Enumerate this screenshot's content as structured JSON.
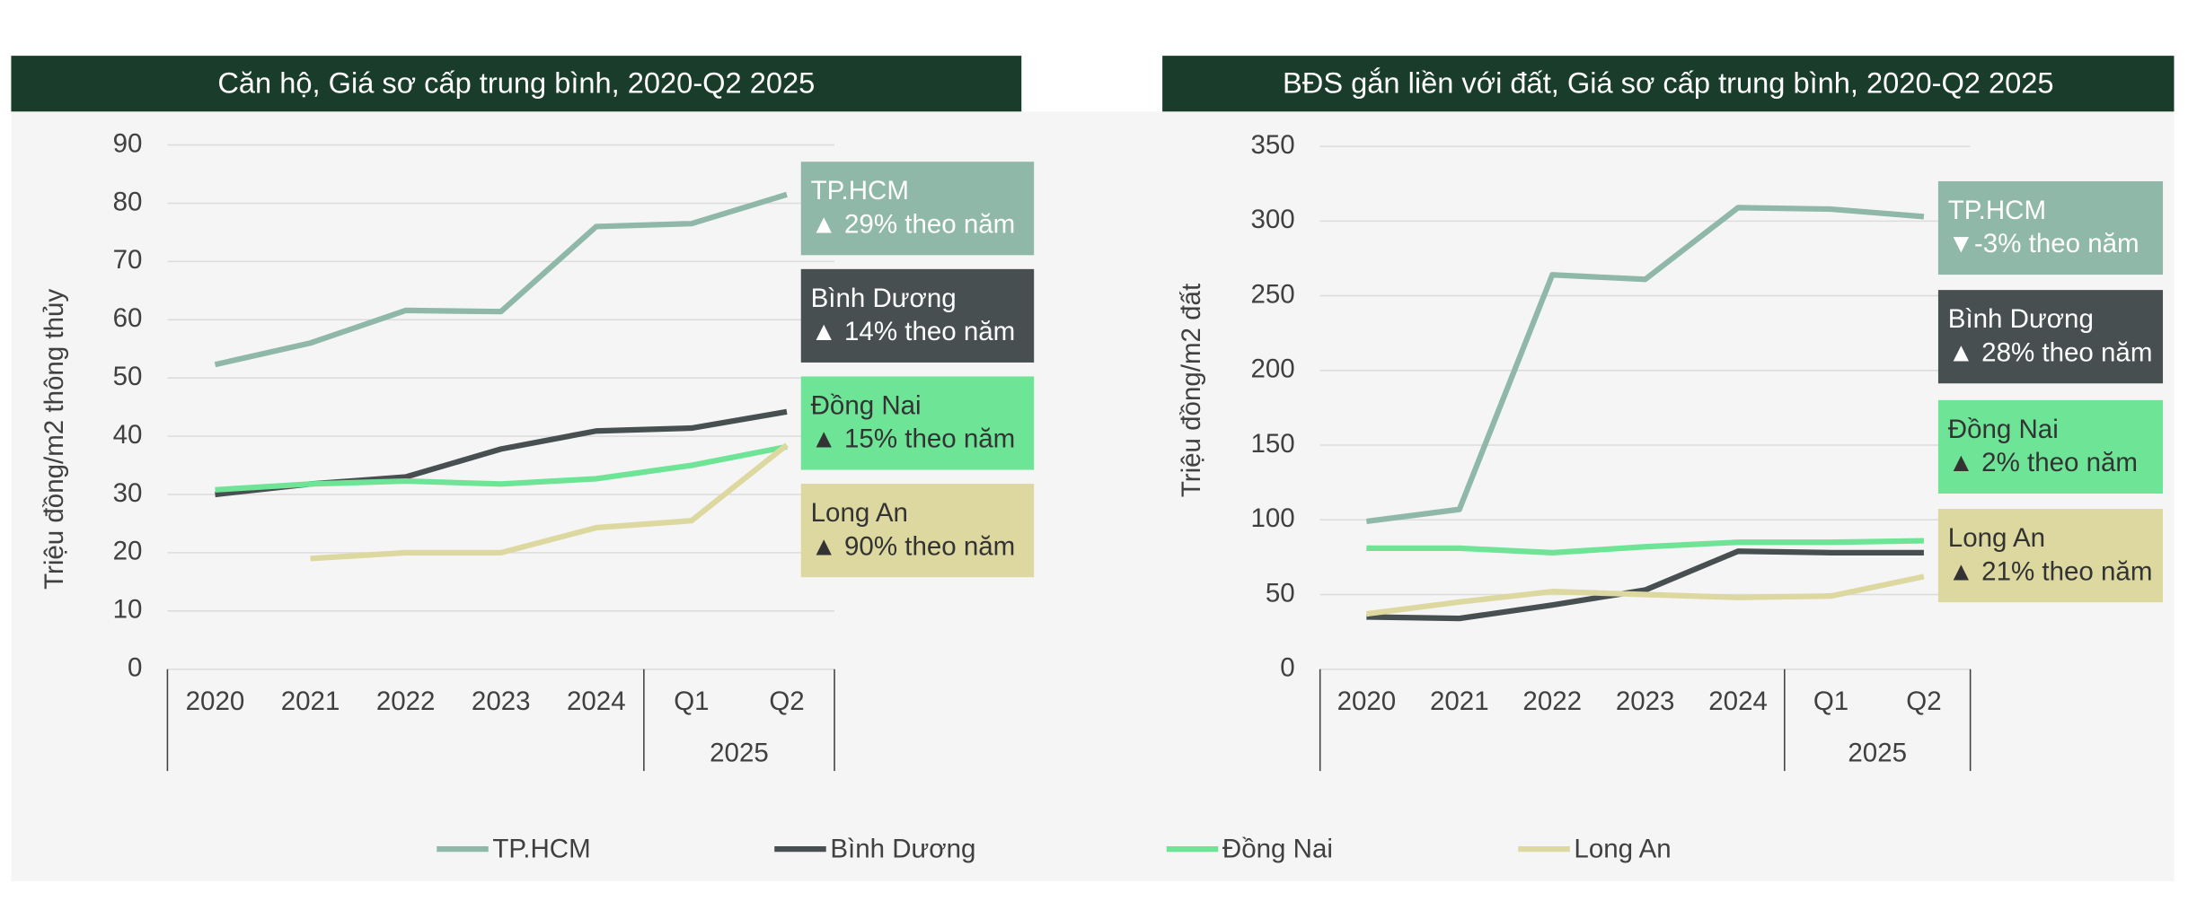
{
  "chart_data": [
    {
      "type": "line",
      "title": "Căn hộ, Giá sơ cấp trung bình, 2020-Q2 2025",
      "y_label": "Triệu đồng/m2 thông thủy",
      "categories": [
        "2020",
        "2021",
        "2022",
        "2023",
        "2024",
        "Q1",
        "Q2"
      ],
      "category_group": {
        "label": "2025",
        "span": 2
      },
      "ylim": [
        0,
        90
      ],
      "yticks": [
        0,
        10,
        20,
        30,
        40,
        50,
        60,
        70,
        80,
        90
      ],
      "grid": true,
      "series": [
        {
          "name": "TP.HCM",
          "color": "#8fb8a8",
          "label_color": "#ffffff",
          "note": "▲ 29% theo năm",
          "values": [
            52.3,
            56,
            61.6,
            61.4,
            76,
            76.5,
            81.5
          ]
        },
        {
          "name": "Bình Dương",
          "color": "#474f50",
          "label_color": "#ffffff",
          "note": "▲ 14% theo năm",
          "values": [
            30,
            31.8,
            33,
            37.8,
            40.9,
            41.4,
            44.2
          ]
        },
        {
          "name": "Đồng Nai",
          "color": "#6ee496",
          "label_color": "#333333",
          "note": "▲ 15% theo năm",
          "values": [
            30.8,
            31.8,
            32.3,
            31.8,
            32.7,
            35,
            38.2
          ]
        },
        {
          "name": "Long An",
          "color": "#ddd8a0",
          "label_color": "#333333",
          "note": "▲ 90% theo năm",
          "values": [
            null,
            19,
            20,
            20,
            24.3,
            25.5,
            38.5
          ]
        }
      ]
    },
    {
      "type": "line",
      "title": "BĐS gắn liền với đất, Giá sơ cấp trung bình, 2020-Q2 2025",
      "y_label": "Triệu đồng/m2 đất",
      "categories": [
        "2020",
        "2021",
        "2022",
        "2023",
        "2024",
        "Q1",
        "Q2"
      ],
      "category_group": {
        "label": "2025",
        "span": 2
      },
      "ylim": [
        0,
        350
      ],
      "yticks": [
        0,
        50,
        100,
        150,
        200,
        250,
        300,
        350
      ],
      "grid": true,
      "series": [
        {
          "name": "TP.HCM",
          "color": "#8fb8a8",
          "label_color": "#ffffff",
          "note": "▼-3% theo năm",
          "values": [
            99,
            107,
            264,
            261,
            309,
            308,
            303
          ]
        },
        {
          "name": "Bình Dương",
          "color": "#474f50",
          "label_color": "#ffffff",
          "note": "▲ 28% theo năm",
          "values": [
            35,
            34,
            43,
            53,
            79,
            78,
            78
          ]
        },
        {
          "name": "Đồng Nai",
          "color": "#6ee496",
          "label_color": "#333333",
          "note": "▲ 2% theo năm",
          "values": [
            81,
            81,
            78,
            82,
            85,
            85,
            86
          ]
        },
        {
          "name": "Long An",
          "color": "#ddd8a0",
          "label_color": "#333333",
          "note": "▲ 21% theo năm",
          "values": [
            37,
            45,
            52,
            50,
            48,
            49,
            62
          ]
        }
      ]
    }
  ]
}
